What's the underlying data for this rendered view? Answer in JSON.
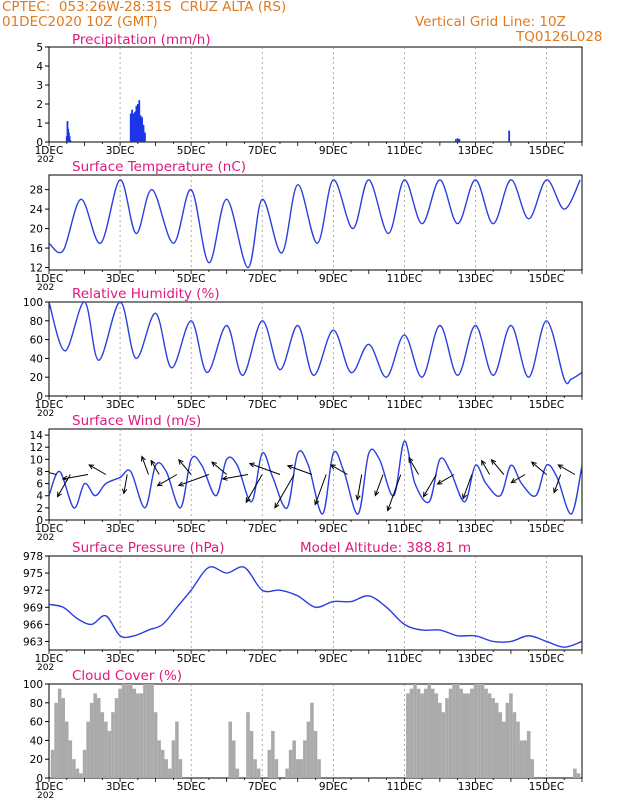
{
  "header": {
    "line1": "CPTEC:  053:26W-28:31S  CRUZ ALTA (RS)",
    "line2": "01DEC2020 10Z (GMT)",
    "vgrid": "Vertical Grid Line: 10Z",
    "code": "TQ0126L028"
  },
  "colors": {
    "line": "#2a3fe0",
    "bar": "#1c35e8",
    "cloud": "#aaaaaa",
    "title": "#e0197d",
    "header": "#e07a1f"
  },
  "x_ticks": [
    "1DEC",
    "3DEC",
    "5DEC",
    "7DEC",
    "9DEC",
    "11DEC",
    "13DEC",
    "15DEC"
  ],
  "x_range_days": [
    1,
    16
  ],
  "year_fragment": "202",
  "chart_data": [
    {
      "type": "bar",
      "title": "Precipitation (mm/h)",
      "ylim": [
        0,
        5
      ],
      "yticks": [
        0,
        1,
        2,
        3,
        4,
        5
      ],
      "x": [
        1.5,
        1.52,
        1.54,
        1.56,
        1.58,
        1.6,
        3.3,
        3.34,
        3.38,
        3.42,
        3.46,
        3.5,
        3.54,
        3.58,
        3.62,
        3.66,
        3.7,
        12.45,
        12.5,
        12.55,
        13.95
      ],
      "values": [
        0.3,
        1.1,
        0.7,
        0.5,
        0.3,
        0.1,
        1.5,
        1.7,
        1.5,
        1.6,
        1.9,
        2.0,
        2.2,
        1.4,
        1.3,
        0.9,
        0.5,
        0.15,
        0.2,
        0.15,
        0.6
      ]
    },
    {
      "type": "line",
      "title": "Surface Temperature (nC)",
      "ylim": [
        11.5,
        31
      ],
      "yticks": [
        12,
        16,
        20,
        24,
        28
      ],
      "x": [
        1.0,
        1.4,
        1.9,
        2.45,
        3.0,
        3.45,
        3.9,
        4.5,
        5.0,
        5.5,
        6.0,
        6.6,
        7.0,
        7.55,
        8.0,
        8.55,
        9.0,
        9.55,
        10.0,
        10.55,
        11.0,
        11.5,
        12.0,
        12.5,
        13.0,
        13.5,
        14.0,
        14.5,
        15.0,
        15.5,
        15.95
      ],
      "values": [
        17,
        15.5,
        26,
        17,
        30,
        19,
        28,
        17,
        28,
        13,
        26,
        12,
        26,
        15,
        29,
        17,
        30,
        20,
        30,
        19,
        30,
        21,
        30,
        21,
        30,
        21,
        30,
        22,
        30,
        24,
        30
      ]
    },
    {
      "type": "line",
      "title": "Relative Humidity (%)",
      "ylim": [
        0,
        100
      ],
      "yticks": [
        0,
        20,
        40,
        60,
        80,
        100
      ],
      "x": [
        1.0,
        1.45,
        2.0,
        2.4,
        3.0,
        3.45,
        4.0,
        4.45,
        5.0,
        5.45,
        6.0,
        6.45,
        7.0,
        7.5,
        8.0,
        8.45,
        9.0,
        9.5,
        10.0,
        10.5,
        11.0,
        11.5,
        12.0,
        12.5,
        13.0,
        13.5,
        14.0,
        14.5,
        15.0,
        15.5,
        15.7,
        16.0
      ],
      "values": [
        100,
        48,
        100,
        38,
        100,
        40,
        88,
        30,
        80,
        25,
        75,
        22,
        80,
        28,
        75,
        22,
        70,
        25,
        55,
        20,
        65,
        20,
        75,
        22,
        75,
        22,
        75,
        20,
        80,
        18,
        18,
        25
      ]
    },
    {
      "type": "line",
      "title": "Surface Wind (m/s)",
      "ylim": [
        0,
        15
      ],
      "yticks": [
        0,
        2,
        4,
        6,
        8,
        10,
        12,
        14
      ],
      "x": [
        1.0,
        1.3,
        1.7,
        2.0,
        2.3,
        2.6,
        3.0,
        3.3,
        3.7,
        4.0,
        4.3,
        4.7,
        5.0,
        5.3,
        5.7,
        6.0,
        6.3,
        6.7,
        7.0,
        7.3,
        7.7,
        8.0,
        8.3,
        8.7,
        9.0,
        9.3,
        9.7,
        10.0,
        10.3,
        10.7,
        11.0,
        11.3,
        11.7,
        12.0,
        12.3,
        12.7,
        13.0,
        13.3,
        13.7,
        14.0,
        14.3,
        14.7,
        15.0,
        15.3,
        15.7,
        16.0
      ],
      "values": [
        4,
        8,
        2,
        6,
        4,
        6,
        7,
        8,
        2,
        9,
        8,
        2,
        10,
        9,
        4,
        10,
        9,
        3,
        11,
        7,
        2,
        11,
        9,
        1,
        11,
        8,
        1,
        11,
        10,
        4,
        13,
        6,
        3,
        10,
        8,
        3,
        9,
        6,
        4,
        9,
        6,
        4,
        9,
        7,
        1,
        9
      ],
      "arrows": [
        {
          "x": 1.2,
          "dir": 285,
          "len": 12
        },
        {
          "x": 1.6,
          "dir": 210,
          "len": 8
        },
        {
          "x": 2.1,
          "dir": 260,
          "len": 8
        },
        {
          "x": 2.6,
          "dir": 300,
          "len": 6
        },
        {
          "x": 3.2,
          "dir": 190,
          "len": 6
        },
        {
          "x": 3.8,
          "dir": 340,
          "len": 6
        },
        {
          "x": 4.1,
          "dir": 330,
          "len": 5
        },
        {
          "x": 4.6,
          "dir": 240,
          "len": 7
        },
        {
          "x": 5.0,
          "dir": 320,
          "len": 6
        },
        {
          "x": 5.5,
          "dir": 250,
          "len": 10
        },
        {
          "x": 6.0,
          "dir": 310,
          "len": 6
        },
        {
          "x": 6.6,
          "dir": 260,
          "len": 8
        },
        {
          "x": 7.0,
          "dir": 210,
          "len": 10
        },
        {
          "x": 7.5,
          "dir": 290,
          "len": 10
        },
        {
          "x": 7.9,
          "dir": 210,
          "len": 12
        },
        {
          "x": 8.4,
          "dir": 290,
          "len": 8
        },
        {
          "x": 8.8,
          "dir": 200,
          "len": 10
        },
        {
          "x": 9.4,
          "dir": 300,
          "len": 6
        },
        {
          "x": 9.8,
          "dir": 190,
          "len": 8
        },
        {
          "x": 10.4,
          "dir": 200,
          "len": 7
        },
        {
          "x": 10.9,
          "dir": 200,
          "len": 12
        },
        {
          "x": 11.4,
          "dir": 330,
          "len": 6
        },
        {
          "x": 11.9,
          "dir": 210,
          "len": 8
        },
        {
          "x": 12.4,
          "dir": 240,
          "len": 6
        },
        {
          "x": 12.9,
          "dir": 200,
          "len": 8
        },
        {
          "x": 13.4,
          "dir": 330,
          "len": 5
        },
        {
          "x": 13.8,
          "dir": 320,
          "len": 6
        },
        {
          "x": 14.4,
          "dir": 240,
          "len": 5
        },
        {
          "x": 15.0,
          "dir": 310,
          "len": 6
        },
        {
          "x": 15.4,
          "dir": 200,
          "len": 6
        },
        {
          "x": 15.8,
          "dir": 300,
          "len": 6
        }
      ]
    },
    {
      "type": "line",
      "title": "Surface Pressure (hPa)",
      "annotation": "Model Altitude: 388.81 m",
      "ylim": [
        961.5,
        978
      ],
      "yticks": [
        963,
        966,
        969,
        972,
        975,
        978
      ],
      "x": [
        1.0,
        1.4,
        1.8,
        2.2,
        2.6,
        3.0,
        3.4,
        3.8,
        4.2,
        4.6,
        5.0,
        5.5,
        6.0,
        6.5,
        7.0,
        7.5,
        8.0,
        8.5,
        9.0,
        9.5,
        10.0,
        10.5,
        11.0,
        11.5,
        12.0,
        12.5,
        13.0,
        13.5,
        14.0,
        14.5,
        15.0,
        15.5,
        16.0
      ],
      "values": [
        969.5,
        969,
        967,
        966,
        967.5,
        964,
        964,
        965,
        966,
        969,
        972,
        976,
        975,
        976,
        972,
        972,
        971,
        969,
        970,
        970,
        971,
        969,
        966,
        965,
        965,
        964,
        964,
        963,
        963,
        964,
        963,
        962,
        963
      ]
    },
    {
      "type": "bar",
      "title": "Cloud Cover (%)",
      "ylim": [
        0,
        100
      ],
      "yticks": [
        0,
        20,
        40,
        60,
        80,
        100
      ],
      "x": [
        1.05,
        1.15,
        1.25,
        1.35,
        1.45,
        1.55,
        1.65,
        1.75,
        1.85,
        1.95,
        2.05,
        2.15,
        2.25,
        2.35,
        2.45,
        2.55,
        2.65,
        2.75,
        2.85,
        2.95,
        3.05,
        3.15,
        3.25,
        3.35,
        3.45,
        3.55,
        3.65,
        3.75,
        3.85,
        3.95,
        4.05,
        4.15,
        4.25,
        4.35,
        4.45,
        4.55,
        4.65,
        4.75,
        4.85,
        4.95,
        5.05,
        5.15,
        5.25,
        5.35,
        5.45,
        5.55,
        5.65,
        5.75,
        5.85,
        5.95,
        6.05,
        6.15,
        6.25,
        6.35,
        6.45,
        6.55,
        6.65,
        6.75,
        6.85,
        6.95,
        7.05,
        7.15,
        7.25,
        7.35,
        7.45,
        7.55,
        7.65,
        7.75,
        7.85,
        7.95,
        8.05,
        8.15,
        8.25,
        8.35,
        8.45,
        8.55,
        8.65,
        8.75,
        8.85,
        8.95,
        9.05,
        9.15,
        9.25,
        9.35,
        9.45,
        9.55,
        9.65,
        9.75,
        9.85,
        9.95,
        10.05,
        10.15,
        10.25,
        10.35,
        10.45,
        10.55,
        10.65,
        10.75,
        10.85,
        10.95,
        11.05,
        11.15,
        11.25,
        11.35,
        11.45,
        11.55,
        11.65,
        11.75,
        11.85,
        11.95,
        12.05,
        12.15,
        12.25,
        12.35,
        12.45,
        12.55,
        12.65,
        12.75,
        12.85,
        12.95,
        13.05,
        13.15,
        13.25,
        13.35,
        13.45,
        13.55,
        13.65,
        13.75,
        13.85,
        13.95,
        14.05,
        14.15,
        14.25,
        14.35,
        14.45,
        14.55,
        14.65,
        14.75,
        14.85,
        14.95,
        15.05,
        15.15,
        15.25,
        15.35,
        15.45,
        15.55,
        15.65,
        15.75,
        15.85,
        15.95
      ],
      "values": [
        30,
        80,
        95,
        85,
        60,
        40,
        20,
        10,
        5,
        30,
        60,
        80,
        90,
        85,
        70,
        60,
        50,
        70,
        85,
        95,
        100,
        100,
        100,
        95,
        90,
        90,
        100,
        100,
        100,
        70,
        40,
        30,
        20,
        10,
        40,
        60,
        20,
        0,
        0,
        0,
        0,
        0,
        0,
        0,
        0,
        0,
        0,
        0,
        0,
        0,
        60,
        40,
        10,
        0,
        0,
        70,
        50,
        20,
        10,
        0,
        0,
        30,
        50,
        20,
        0,
        0,
        10,
        30,
        40,
        20,
        20,
        40,
        60,
        80,
        50,
        20,
        0,
        0,
        0,
        0,
        0,
        0,
        0,
        0,
        0,
        0,
        0,
        0,
        0,
        0,
        0,
        0,
        0,
        0,
        0,
        0,
        0,
        0,
        0,
        0,
        90,
        95,
        100,
        95,
        90,
        95,
        100,
        95,
        90,
        80,
        70,
        85,
        95,
        100,
        100,
        95,
        90,
        90,
        95,
        100,
        100,
        100,
        95,
        90,
        85,
        80,
        70,
        60,
        80,
        90,
        70,
        60,
        40,
        40,
        50,
        20,
        0,
        0,
        0,
        0,
        0,
        0,
        0,
        0,
        0,
        0,
        0,
        10,
        5,
        0
      ]
    }
  ]
}
